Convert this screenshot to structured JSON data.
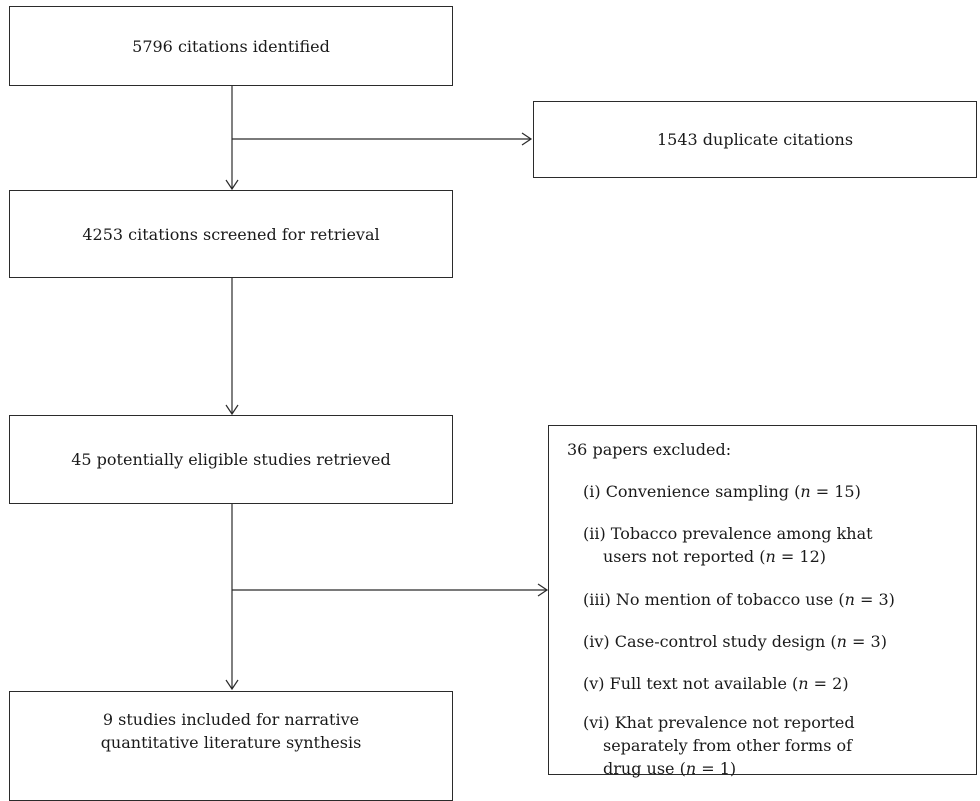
{
  "boxes": {
    "identified": "5796 citations identified",
    "duplicates": "1543 duplicate citations",
    "screened": "4253 citations screened for retrieval",
    "retrieved": "45 potentially eligible studies retrieved",
    "included_line1": "9 studies included for narrative",
    "included_line2": "quantitative literature synthesis"
  },
  "excluded": {
    "title": "36 papers excluded:",
    "items": [
      {
        "lines": [
          "(i) Convenience sampling (",
          "n",
          " = 15)"
        ]
      },
      {
        "line1": "(ii) Tobacco prevalence among khat",
        "line2": [
          "users not reported (",
          "n",
          " = 12)"
        ]
      },
      {
        "lines": [
          "(iii) No mention of tobacco use (",
          "n",
          " = 3)"
        ]
      },
      {
        "lines": [
          "(iv) Case-control study design (",
          "n",
          " = 3)"
        ]
      },
      {
        "lines": [
          "(v) Full text not available (",
          "n",
          " = 2)"
        ]
      },
      {
        "line1": "(vi) Khat prevalence not reported",
        "line2": "separately from other forms of",
        "line3": [
          "drug use (",
          "n",
          " = 1)"
        ]
      }
    ]
  }
}
